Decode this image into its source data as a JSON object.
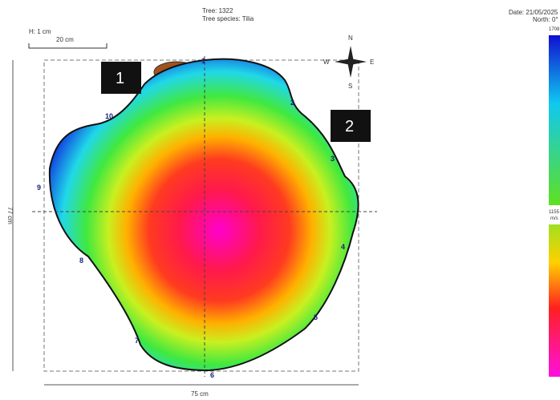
{
  "header": {
    "tree": "Tree: 1322",
    "species": "Tree species: Tilia",
    "date": "Date: 21/05/2025",
    "north": "North: 0°"
  },
  "scale": {
    "h": "H: 1 cm",
    "bar": "20 cm"
  },
  "dimensions": {
    "height": "77 cm",
    "width": "75 cm"
  },
  "compass": {
    "n": "N",
    "e": "E",
    "s": "S",
    "w": "W"
  },
  "sensors": [
    "1",
    "2",
    "3",
    "4",
    "5",
    "6",
    "7",
    "8",
    "9",
    "10"
  ],
  "labels": [
    "1",
    "2"
  ],
  "color_scale": {
    "max": "1708",
    "mid": "1155",
    "unit": "m/s"
  }
}
